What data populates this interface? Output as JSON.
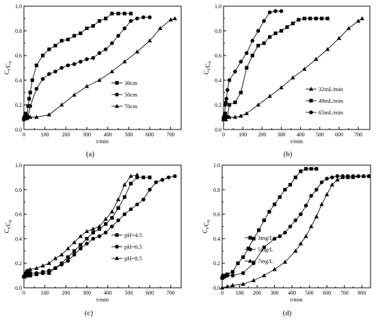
{
  "chart_data": [
    {
      "type": "line",
      "panel_label": "(a)",
      "xlabel": "t/min",
      "ylabel": "C_t/C_0",
      "xlim": [
        0,
        750
      ],
      "ylim": [
        0,
        1.0
      ],
      "xticks": [
        "0",
        "100",
        "200",
        "300",
        "400",
        "500",
        "600",
        "700"
      ],
      "yticks": [
        "0.0",
        "0.2",
        "0.4",
        "0.6",
        "0.8",
        "1.0"
      ],
      "legend_position": "center-right",
      "series": [
        {
          "name": "30cm",
          "marker": "square",
          "x": [
            0,
            3,
            6,
            9,
            12,
            15,
            20,
            25,
            30,
            40,
            60,
            90,
            120,
            150,
            180,
            210,
            240,
            270,
            300,
            330,
            360,
            390,
            420,
            450,
            480,
            510
          ],
          "y": [
            0.09,
            0.1,
            0.12,
            0.13,
            0.1,
            0.11,
            0.19,
            0.25,
            0.3,
            0.4,
            0.52,
            0.6,
            0.65,
            0.68,
            0.72,
            0.73,
            0.76,
            0.78,
            0.82,
            0.84,
            0.88,
            0.9,
            0.94,
            0.94,
            0.94,
            0.94
          ]
        },
        {
          "name": "50cm",
          "marker": "circle",
          "x": [
            0,
            3,
            6,
            9,
            12,
            15,
            20,
            30,
            60,
            90,
            120,
            150,
            180,
            210,
            240,
            270,
            300,
            330,
            360,
            390,
            420,
            450,
            480,
            510,
            540,
            570,
            600
          ],
          "y": [
            0.08,
            0.09,
            0.1,
            0.1,
            0.1,
            0.09,
            0.1,
            0.19,
            0.33,
            0.41,
            0.45,
            0.47,
            0.5,
            0.52,
            0.53,
            0.55,
            0.57,
            0.58,
            0.62,
            0.65,
            0.7,
            0.76,
            0.82,
            0.88,
            0.9,
            0.91,
            0.91
          ]
        },
        {
          "name": "70cm",
          "marker": "triangle",
          "x": [
            0,
            3,
            6,
            9,
            12,
            15,
            20,
            30,
            60,
            120,
            180,
            240,
            300,
            360,
            420,
            480,
            540,
            600,
            650,
            700,
            720
          ],
          "y": [
            0.09,
            0.09,
            0.1,
            0.1,
            0.09,
            0.1,
            0.1,
            0.1,
            0.1,
            0.12,
            0.2,
            0.28,
            0.35,
            0.4,
            0.47,
            0.55,
            0.63,
            0.72,
            0.82,
            0.89,
            0.9
          ]
        }
      ]
    },
    {
      "type": "line",
      "panel_label": "(b)",
      "xlabel": "t/min",
      "ylabel": "C_t/C_0",
      "xlim": [
        0,
        760
      ],
      "ylim": [
        0,
        1.0
      ],
      "xticks": [
        "0",
        "100",
        "200",
        "300",
        "400",
        "500",
        "600",
        "700"
      ],
      "yticks": [
        "0.0",
        "0.2",
        "0.4",
        "0.6",
        "0.8",
        "1.0"
      ],
      "legend_position": "center-right",
      "series": [
        {
          "name": "32mL/min",
          "marker": "triangle",
          "x": [
            0,
            3,
            6,
            9,
            12,
            15,
            20,
            30,
            60,
            90,
            120,
            180,
            240,
            300,
            360,
            420,
            480,
            540,
            600,
            650,
            700,
            720
          ],
          "y": [
            0.08,
            0.09,
            0.09,
            0.1,
            0.08,
            0.1,
            0.1,
            0.1,
            0.1,
            0.11,
            0.13,
            0.2,
            0.27,
            0.34,
            0.42,
            0.49,
            0.57,
            0.65,
            0.74,
            0.82,
            0.88,
            0.9
          ]
        },
        {
          "name": "49mL/min",
          "marker": "square",
          "x": [
            0,
            3,
            6,
            9,
            12,
            15,
            20,
            30,
            60,
            90,
            120,
            150,
            180,
            210,
            240,
            270,
            300,
            330,
            360,
            390,
            420,
            450,
            480,
            510,
            540
          ],
          "y": [
            0.09,
            0.1,
            0.12,
            0.13,
            0.1,
            0.1,
            0.1,
            0.2,
            0.22,
            0.3,
            0.5,
            0.6,
            0.68,
            0.7,
            0.75,
            0.78,
            0.8,
            0.83,
            0.86,
            0.89,
            0.9,
            0.9,
            0.9,
            0.9,
            0.9
          ]
        },
        {
          "name": "65mL/min",
          "marker": "circle",
          "x": [
            0,
            3,
            6,
            9,
            12,
            15,
            20,
            30,
            60,
            90,
            120,
            150,
            180,
            210,
            240,
            270,
            300
          ],
          "y": [
            0.09,
            0.1,
            0.12,
            0.2,
            0.22,
            0.25,
            0.32,
            0.4,
            0.47,
            0.55,
            0.62,
            0.72,
            0.8,
            0.88,
            0.95,
            0.96,
            0.96
          ]
        }
      ]
    },
    {
      "type": "line",
      "panel_label": "(c)",
      "xlabel": "t/min",
      "ylabel": "C_t/C_0",
      "xlim": [
        0,
        750
      ],
      "ylim": [
        0,
        1.0
      ],
      "xticks": [
        "0",
        "100",
        "200",
        "300",
        "400",
        "500",
        "600",
        "700"
      ],
      "yticks": [
        "0.0",
        "0.2",
        "0.4",
        "0.6",
        "0.8",
        "1.0"
      ],
      "legend_position": "center-right",
      "series": [
        {
          "name": "pH=4.5",
          "marker": "square",
          "x": [
            0,
            3,
            6,
            9,
            12,
            15,
            20,
            30,
            60,
            90,
            120,
            150,
            180,
            210,
            240,
            270,
            300,
            330,
            360,
            390,
            420,
            450,
            480,
            510,
            540,
            570,
            600
          ],
          "y": [
            0.09,
            0.09,
            0.1,
            0.1,
            0.1,
            0.1,
            0.1,
            0.1,
            0.11,
            0.12,
            0.12,
            0.16,
            0.2,
            0.25,
            0.3,
            0.35,
            0.4,
            0.45,
            0.48,
            0.52,
            0.57,
            0.65,
            0.74,
            0.85,
            0.9,
            0.9,
            0.9
          ]
        },
        {
          "name": "pH=6.5",
          "marker": "circle",
          "x": [
            0,
            3,
            6,
            9,
            12,
            15,
            20,
            30,
            60,
            90,
            120,
            150,
            180,
            210,
            240,
            270,
            300,
            330,
            360,
            390,
            420,
            450,
            480,
            510,
            540,
            570,
            600,
            630,
            660,
            690,
            720
          ],
          "y": [
            0.09,
            0.1,
            0.1,
            0.1,
            0.1,
            0.11,
            0.12,
            0.12,
            0.12,
            0.13,
            0.14,
            0.16,
            0.19,
            0.22,
            0.27,
            0.32,
            0.36,
            0.4,
            0.42,
            0.45,
            0.5,
            0.55,
            0.6,
            0.64,
            0.68,
            0.72,
            0.8,
            0.86,
            0.88,
            0.9,
            0.91
          ]
        },
        {
          "name": "pH=8.5",
          "marker": "triangle",
          "x": [
            0,
            3,
            6,
            9,
            12,
            15,
            20,
            30,
            60,
            90,
            120,
            150,
            180,
            210,
            240,
            270,
            300,
            330,
            360,
            390,
            420,
            450,
            480,
            510,
            540
          ],
          "y": [
            0.1,
            0.11,
            0.12,
            0.13,
            0.13,
            0.14,
            0.14,
            0.15,
            0.16,
            0.18,
            0.2,
            0.24,
            0.27,
            0.32,
            0.37,
            0.42,
            0.46,
            0.48,
            0.5,
            0.56,
            0.62,
            0.72,
            0.84,
            0.91,
            0.92
          ]
        }
      ]
    },
    {
      "type": "line",
      "panel_label": "(d)",
      "xlabel": "t/min",
      "ylabel": "C_t/C_0",
      "xlim": [
        0,
        850
      ],
      "ylim": [
        0,
        1.0
      ],
      "xticks": [
        "0",
        "100",
        "200",
        "300",
        "400",
        "500",
        "600",
        "700",
        "800"
      ],
      "yticks": [
        "0.0",
        "0.2",
        "0.4",
        "0.6",
        "0.8",
        "1.0"
      ],
      "legend_position": "center-right",
      "series": [
        {
          "name": "3mg/L",
          "marker": "square",
          "x": [
            0,
            3,
            6,
            9,
            12,
            15,
            20,
            30,
            60,
            90,
            120,
            150,
            180,
            210,
            240,
            270,
            300,
            330,
            360,
            390,
            420,
            450,
            480,
            510,
            540
          ],
          "y": [
            0.08,
            0.09,
            0.1,
            0.1,
            0.1,
            0.1,
            0.1,
            0.11,
            0.13,
            0.2,
            0.25,
            0.32,
            0.4,
            0.47,
            0.55,
            0.62,
            0.68,
            0.74,
            0.8,
            0.84,
            0.9,
            0.95,
            0.97,
            0.97,
            0.97
          ]
        },
        {
          "name": "5mg/L",
          "marker": "circle",
          "x": [
            0,
            3,
            6,
            9,
            12,
            15,
            20,
            30,
            60,
            120,
            180,
            240,
            300,
            330,
            360,
            390,
            420,
            450,
            480,
            510,
            540,
            570,
            600,
            630,
            660,
            690,
            720,
            750,
            780,
            810,
            840
          ],
          "y": [
            0.08,
            0.08,
            0.09,
            0.09,
            0.09,
            0.09,
            0.1,
            0.1,
            0.1,
            0.12,
            0.2,
            0.33,
            0.4,
            0.42,
            0.45,
            0.5,
            0.55,
            0.6,
            0.67,
            0.75,
            0.8,
            0.86,
            0.89,
            0.9,
            0.91,
            0.91,
            0.91,
            0.91,
            0.91,
            0.91,
            0.91
          ]
        },
        {
          "name": "7mg/L",
          "marker": "triangle",
          "x": [
            0,
            30,
            60,
            120,
            180,
            240,
            300,
            360,
            420,
            450,
            480,
            510,
            540,
            570,
            600,
            630,
            660,
            690,
            720,
            750,
            780,
            810,
            840
          ],
          "y": [
            0.0,
            0.01,
            0.02,
            0.03,
            0.06,
            0.1,
            0.15,
            0.21,
            0.3,
            0.36,
            0.42,
            0.5,
            0.58,
            0.68,
            0.76,
            0.84,
            0.88,
            0.9,
            0.9,
            0.9,
            0.91,
            0.91,
            0.91
          ]
        }
      ]
    }
  ]
}
